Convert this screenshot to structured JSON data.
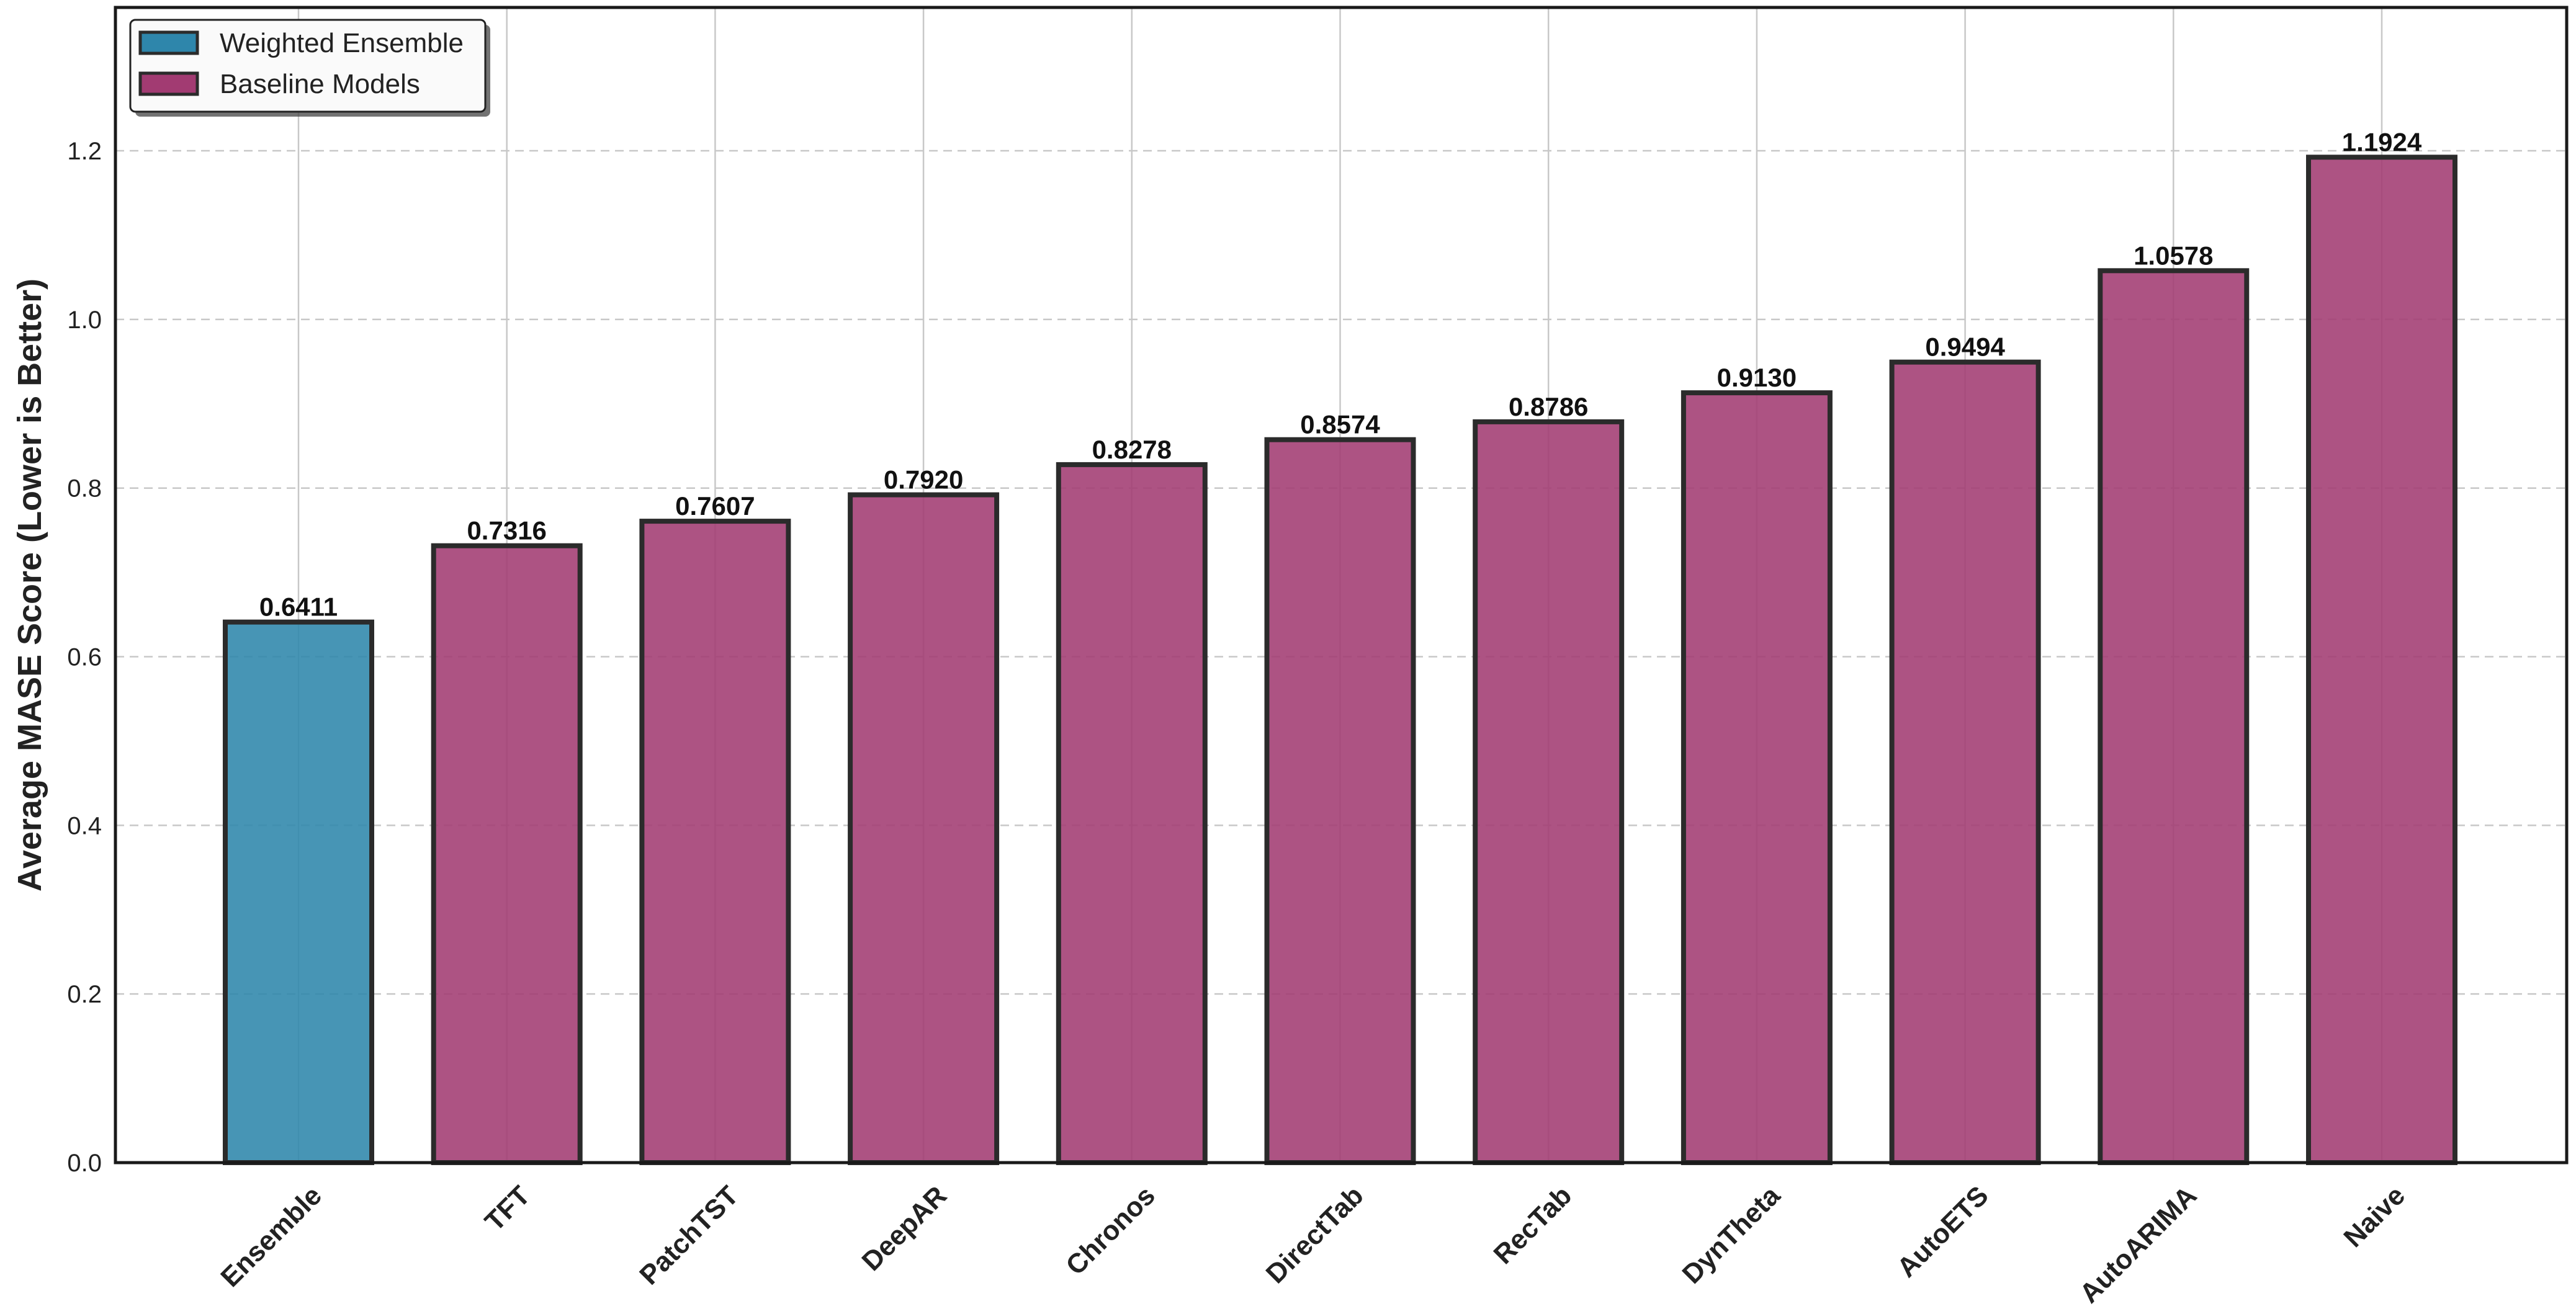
{
  "chart_data": {
    "type": "bar",
    "categories": [
      "Ensemble",
      "TFT",
      "PatchTST",
      "DeepAR",
      "Chronos",
      "DirectTab",
      "RecTab",
      "DynTheta",
      "AutoETS",
      "AutoARIMA",
      "Naive"
    ],
    "values": [
      0.6411,
      0.7316,
      0.7607,
      0.792,
      0.8278,
      0.8574,
      0.8786,
      0.913,
      0.9494,
      1.0578,
      1.1924
    ],
    "value_labels": [
      "0.6411",
      "0.7316",
      "0.7607",
      "0.7920",
      "0.8278",
      "0.8574",
      "0.8786",
      "0.9130",
      "0.9494",
      "1.0578",
      "1.1924"
    ],
    "bar_groups": [
      "Weighted Ensemble",
      "Baseline Models",
      "Baseline Models",
      "Baseline Models",
      "Baseline Models",
      "Baseline Models",
      "Baseline Models",
      "Baseline Models",
      "Baseline Models",
      "Baseline Models",
      "Baseline Models"
    ],
    "title": "",
    "xlabel": "",
    "ylabel": "Average MASE Score (Lower is Better)",
    "ylim": [
      0,
      1.37
    ],
    "yticks": [
      0.0,
      0.2,
      0.4,
      0.6,
      0.8,
      1.0,
      1.2
    ],
    "ytick_labels": [
      "0.0",
      "0.2",
      "0.4",
      "0.6",
      "0.8",
      "1.0",
      "1.2"
    ],
    "grid": true,
    "legend": {
      "placement": "top-left",
      "entries": [
        {
          "label": "Weighted Ensemble",
          "color": "#2e86ab"
        },
        {
          "label": "Baseline Models",
          "color": "#a23b72"
        }
      ]
    },
    "colors": {
      "Weighted Ensemble": "#2e86ab",
      "Baseline Models": "#a23b72",
      "edge": "#2b2b2b"
    }
  }
}
